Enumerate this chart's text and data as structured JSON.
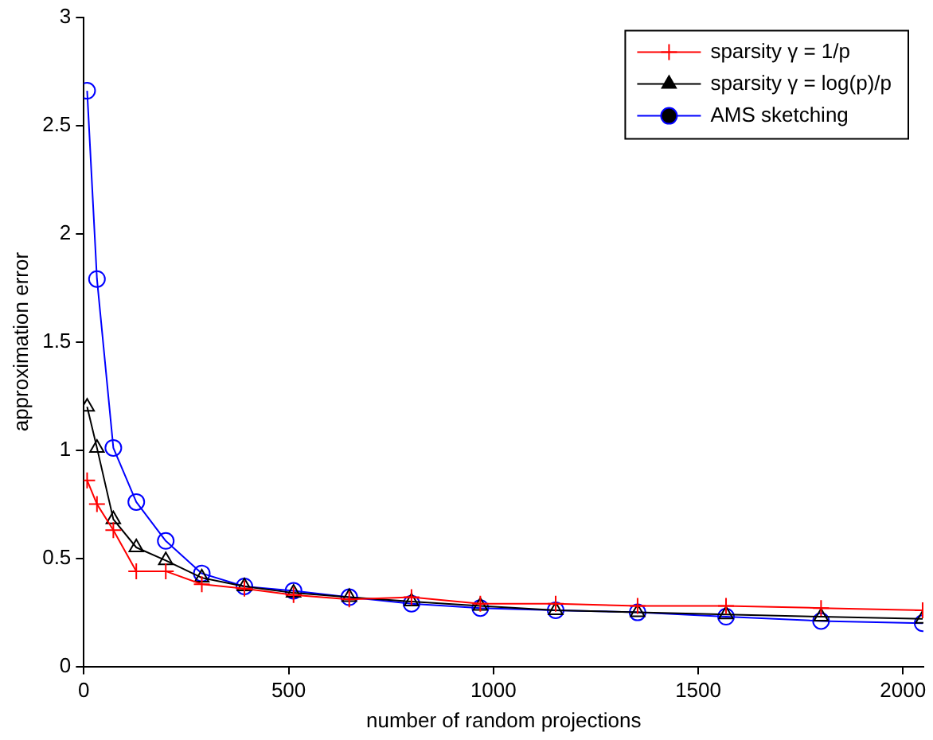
{
  "chart_data": {
    "type": "line",
    "xlabel": "number of random projections",
    "ylabel": "approximation error",
    "x": [
      8,
      32,
      72,
      128,
      200,
      288,
      392,
      512,
      648,
      800,
      968,
      1152,
      1352,
      1568,
      1800,
      2048
    ],
    "series": [
      {
        "name": "sparsity γ = 1/p",
        "color": "#ff0000",
        "marker": "cross",
        "values": [
          0.86,
          0.75,
          0.63,
          0.44,
          0.44,
          0.38,
          0.36,
          0.33,
          0.31,
          0.32,
          0.29,
          0.29,
          0.28,
          0.28,
          0.27,
          0.26
        ]
      },
      {
        "name": "sparsity γ = log(p)/p",
        "color": "#000000",
        "marker": "triangle",
        "values": [
          1.2,
          1.01,
          0.68,
          0.55,
          0.49,
          0.41,
          0.37,
          0.34,
          0.32,
          0.3,
          0.28,
          0.26,
          0.25,
          0.24,
          0.23,
          0.22
        ]
      },
      {
        "name": "AMS sketching",
        "color": "#0000ff",
        "marker": "circle",
        "values": [
          2.66,
          1.79,
          1.01,
          0.76,
          0.58,
          0.43,
          0.37,
          0.35,
          0.32,
          0.29,
          0.27,
          0.26,
          0.25,
          0.23,
          0.21,
          0.2
        ]
      }
    ],
    "xlim": [
      0,
      2050
    ],
    "xticks": [
      0,
      500,
      1000,
      1500,
      2000
    ],
    "ylim": [
      0,
      3
    ],
    "yticks": [
      0,
      0.5,
      1,
      1.5,
      2,
      2.5,
      3
    ],
    "grid": false,
    "legend": "top right",
    "line_style": "solid"
  }
}
